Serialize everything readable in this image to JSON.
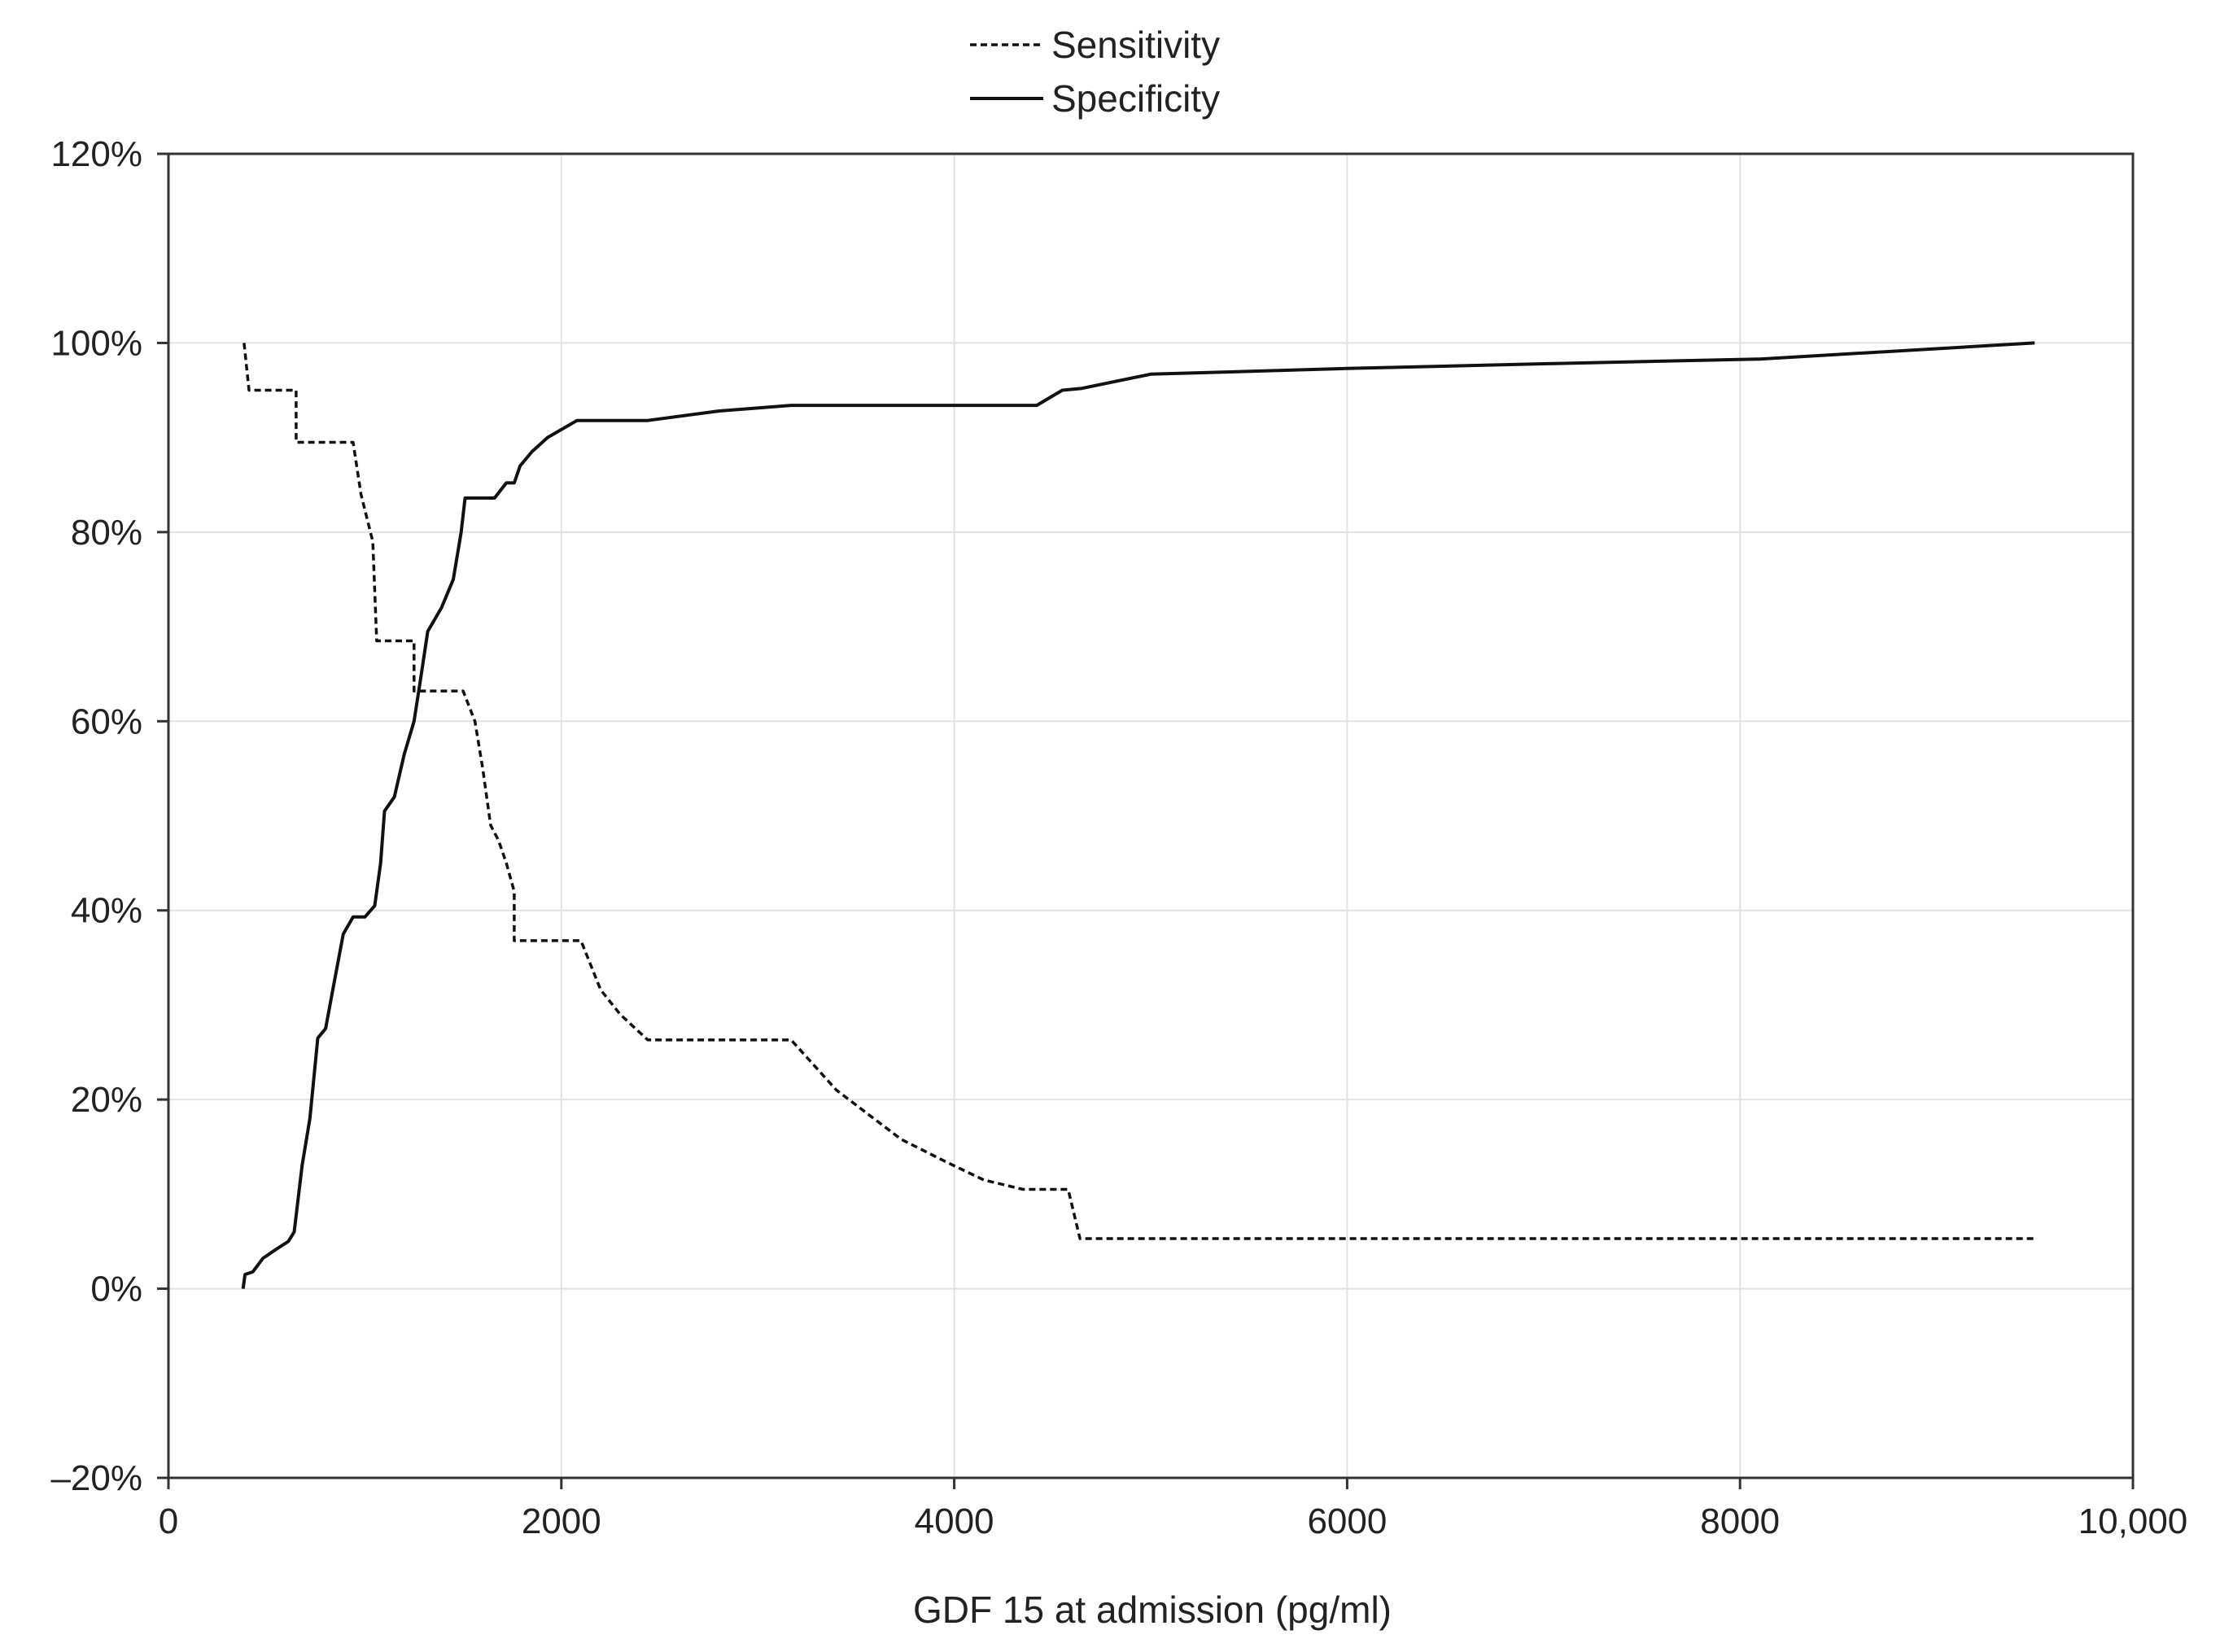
{
  "chart_data": {
    "type": "line",
    "xlabel": "GDF 15 at admission (pg/ml)",
    "ylabel": "",
    "xlim": [
      0,
      10000
    ],
    "ylim": [
      -20,
      120
    ],
    "xticks": [
      0,
      2000,
      4000,
      6000,
      8000,
      10000
    ],
    "xtick_labels": [
      "0",
      "2000",
      "4000",
      "6000",
      "8000",
      "10,000"
    ],
    "yticks": [
      -20,
      0,
      20,
      40,
      60,
      80,
      100,
      120
    ],
    "ytick_labels": [
      "–20%",
      "0%",
      "20%",
      "40%",
      "60%",
      "80%",
      "100%",
      "120%"
    ],
    "grid": true,
    "legend_position": "top-center",
    "series": [
      {
        "name": "Sensitivity",
        "style": "dashed",
        "color": "#111111",
        "points": [
          [
            385,
            100
          ],
          [
            410,
            95
          ],
          [
            650,
            95
          ],
          [
            650,
            89.5
          ],
          [
            940,
            89.5
          ],
          [
            980,
            84
          ],
          [
            1040,
            79
          ],
          [
            1060,
            68.5
          ],
          [
            1250,
            68.5
          ],
          [
            1250,
            63.2
          ],
          [
            1500,
            63.2
          ],
          [
            1560,
            60
          ],
          [
            1600,
            55
          ],
          [
            1640,
            49
          ],
          [
            1680,
            47.4
          ],
          [
            1720,
            45
          ],
          [
            1760,
            42
          ],
          [
            1760,
            36.8
          ],
          [
            2100,
            36.8
          ],
          [
            2200,
            31.6
          ],
          [
            2300,
            29
          ],
          [
            2440,
            26.3
          ],
          [
            3170,
            26.3
          ],
          [
            3400,
            21
          ],
          [
            3730,
            15.8
          ],
          [
            3950,
            13.5
          ],
          [
            4150,
            11.5
          ],
          [
            4350,
            10.5
          ],
          [
            4580,
            10.5
          ],
          [
            4640,
            5.3
          ],
          [
            9500,
            5.3
          ]
        ]
      },
      {
        "name": "Specificity",
        "style": "solid",
        "color": "#111111",
        "points": [
          [
            380,
            0
          ],
          [
            390,
            1.5
          ],
          [
            430,
            1.8
          ],
          [
            480,
            3.2
          ],
          [
            550,
            4.2
          ],
          [
            610,
            5
          ],
          [
            640,
            6
          ],
          [
            680,
            13
          ],
          [
            720,
            18
          ],
          [
            760,
            26.5
          ],
          [
            800,
            27.5
          ],
          [
            840,
            32
          ],
          [
            890,
            37.5
          ],
          [
            940,
            39.3
          ],
          [
            1000,
            39.3
          ],
          [
            1050,
            40.5
          ],
          [
            1080,
            45
          ],
          [
            1100,
            50.5
          ],
          [
            1150,
            52
          ],
          [
            1200,
            56.5
          ],
          [
            1250,
            60
          ],
          [
            1280,
            64
          ],
          [
            1320,
            69.5
          ],
          [
            1390,
            72
          ],
          [
            1450,
            75
          ],
          [
            1490,
            80
          ],
          [
            1510,
            83.6
          ],
          [
            1660,
            83.6
          ],
          [
            1720,
            85.2
          ],
          [
            1760,
            85.2
          ],
          [
            1790,
            87
          ],
          [
            1850,
            88.5
          ],
          [
            1930,
            90
          ],
          [
            2080,
            91.8
          ],
          [
            2440,
            91.8
          ],
          [
            2800,
            92.8
          ],
          [
            3170,
            93.4
          ],
          [
            4420,
            93.4
          ],
          [
            4550,
            95
          ],
          [
            4650,
            95.2
          ],
          [
            5000,
            96.7
          ],
          [
            6000,
            97.3
          ],
          [
            7000,
            97.8
          ],
          [
            8100,
            98.3
          ],
          [
            9500,
            100
          ]
        ]
      }
    ]
  }
}
